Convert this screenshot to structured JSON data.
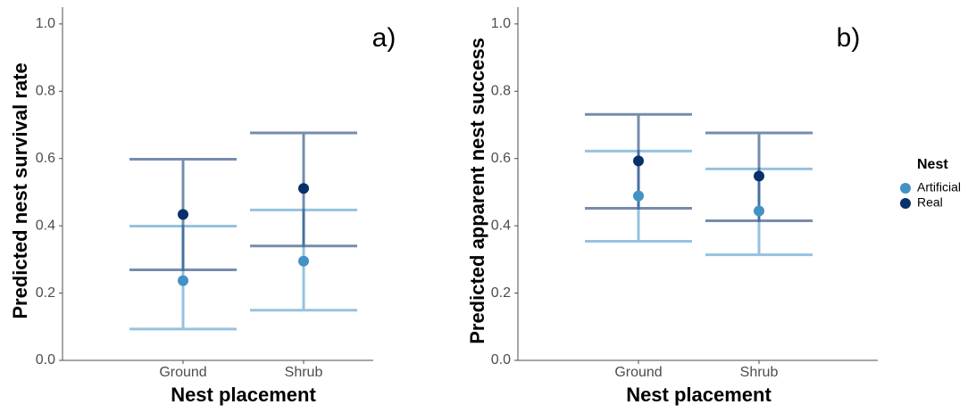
{
  "chart_data": [
    {
      "type": "errorbar",
      "panel_label": "a)",
      "y_label": "Predicted nest survival rate",
      "x_label": "Nest placement",
      "categories": [
        "Ground",
        "Shrub"
      ],
      "ylim": [
        0,
        1.05
      ],
      "yticks": [
        {
          "value": 0,
          "label": "0.0"
        },
        0.2,
        0.4,
        0.6,
        0.8,
        {
          "value": 1,
          "label": "1.0"
        }
      ],
      "legend_title": "Nest",
      "series": [
        {
          "name": "Artificial",
          "color": "#4292c6",
          "values": [
            0.237,
            0.295
          ],
          "lower": [
            0.093,
            0.149
          ],
          "upper": [
            0.399,
            0.447
          ]
        },
        {
          "name": "Real",
          "color": "#08306b",
          "values": [
            0.434,
            0.511
          ],
          "lower": [
            0.269,
            0.34
          ],
          "upper": [
            0.598,
            0.676
          ]
        }
      ]
    },
    {
      "type": "errorbar",
      "panel_label": "b)",
      "y_label": "Predicted apparent nest success",
      "x_label": "Nest placement",
      "categories": [
        "Ground",
        "Shrub"
      ],
      "ylim": [
        0,
        1.05
      ],
      "yticks": [
        {
          "value": 0,
          "label": "0.0"
        },
        0.2,
        0.4,
        0.6,
        0.8,
        {
          "value": 1,
          "label": "1.0"
        }
      ],
      "series": [
        {
          "name": "Artificial",
          "color": "#4292c6",
          "values": [
            0.489,
            0.444
          ],
          "lower": [
            0.354,
            0.314
          ],
          "upper": [
            0.622,
            0.569
          ]
        },
        {
          "name": "Real",
          "color": "#08306b",
          "values": [
            0.593,
            0.548
          ],
          "lower": [
            0.452,
            0.415
          ],
          "upper": [
            0.731,
            0.676
          ]
        }
      ]
    }
  ]
}
